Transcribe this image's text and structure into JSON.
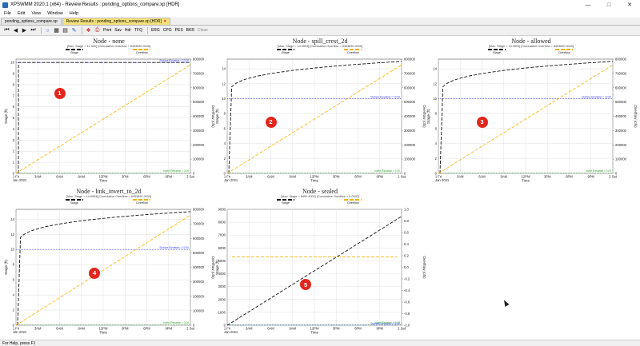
{
  "window": {
    "title": "XPSWMM 2020.1 (x64) - Review Results : ponding_options_compare.xp [HDR]",
    "icon": "app-icon"
  },
  "menu": {
    "items": [
      "File",
      "Edit",
      "View",
      "Window",
      "Help"
    ]
  },
  "tabs": [
    {
      "label": "ponding_options_compare.xp",
      "active": false
    },
    {
      "label": "Review Results : ponding_options_compare.xp [HDR]",
      "active": true
    }
  ],
  "toolbar": {
    "print": "Print",
    "save": "Sav",
    "help": "Hdr",
    "tfq": "TFQ",
    "erg": "ERG",
    "cpg": "CPG",
    "pes": "PES",
    "bkr": "BKR",
    "close": "Close"
  },
  "legend": {
    "stage": "Stage",
    "overflow": "Overflow"
  },
  "x_ticks": [
    "1 Fri",
    "3AM",
    "6AM",
    "9AM",
    "12PM",
    "3PM",
    "6PM",
    "9PM",
    "2 Sat"
  ],
  "x_date": "Jan 2021",
  "x_title": "Time",
  "y_left_title": "Stage (ft)",
  "y_right_title": "Overflow (cfs)",
  "surface_label": "Surface Elevation = 10.00",
  "invert_label": "Invert Elevation = 0.00",
  "marker_color": "#e2261d",
  "charts": [
    {
      "title": "Node - none",
      "stats": "[Max. Stage = 10.000] [Cumulative Overflow = 8453830.0000]",
      "marker": "1",
      "chart_data": {
        "type": "line",
        "title": "Node - none",
        "xlabel": "Time",
        "ylabel": "Stage (ft)",
        "y2label": "Overflow (cfs)",
        "x": [
          "1 Fri",
          "3AM",
          "6AM",
          "9AM",
          "12PM",
          "3PM",
          "6PM",
          "9PM",
          "2 Sat"
        ],
        "left_ticks": [
          "0",
          "1",
          "2",
          "3",
          "4",
          "5",
          "6",
          "7",
          "8",
          "9",
          "10"
        ],
        "right_ticks": [
          "0",
          "100000",
          "200000",
          "300000",
          "400000",
          "500000",
          "600000",
          "700000",
          "800000"
        ],
        "ylim": [
          0,
          10.3
        ],
        "y2lim": [
          0,
          800000
        ],
        "surface_elevation": 10,
        "series": [
          {
            "name": "Stage",
            "color": "#111111",
            "values": [
              0,
              10,
              10,
              10,
              10,
              10,
              10,
              10,
              10
            ],
            "rise": "step"
          },
          {
            "name": "Overflow",
            "color": "#f4b400",
            "values": [
              0,
              95000,
              190000,
              285000,
              380000,
              475000,
              570000,
              665000,
              760000
            ]
          }
        ]
      }
    },
    {
      "title": "Node - spill_crest_2d",
      "stats": "[Max. Stage = 14.9993] [Cumulative Overflow = 8453830.0000]",
      "marker": "2",
      "chart_data": {
        "type": "line",
        "title": "Node - spill_crest_2d",
        "xlabel": "Time",
        "ylabel": "Stage (ft)",
        "y2label": "Overflow (cfs)",
        "x": [
          "1 Fri",
          "3AM",
          "6AM",
          "9AM",
          "12PM",
          "3PM",
          "6PM",
          "9PM",
          "2 Sat"
        ],
        "left_ticks": [
          "0",
          "2",
          "4",
          "6",
          "8",
          "10",
          "12",
          "14"
        ],
        "right_ticks": [
          "0",
          "100000",
          "200000",
          "300000",
          "400000",
          "500000",
          "600000",
          "700000",
          "800000"
        ],
        "ylim": [
          0,
          15.3
        ],
        "y2lim": [
          0,
          800000
        ],
        "surface_elevation": 10,
        "series": [
          {
            "name": "Stage",
            "color": "#111111",
            "values": [
              0,
              13.2,
              13.8,
              14.1,
              14.35,
              14.55,
              14.7,
              14.85,
              15.0
            ],
            "rise": "curve"
          },
          {
            "name": "Overflow",
            "color": "#f4b400",
            "values": [
              0,
              95000,
              190000,
              285000,
              380000,
              475000,
              570000,
              665000,
              760000
            ]
          }
        ]
      }
    },
    {
      "title": "Node - allowed",
      "stats": "[Max. Stage = 14.9993] [Cumulative Overflow = 8453830.0000]",
      "marker": "3",
      "chart_data": {
        "type": "line",
        "title": "Node - allowed",
        "xlabel": "Time",
        "ylabel": "Stage (ft)",
        "y2label": "Overflow (cfs)",
        "x": [
          "1 Fri",
          "3AM",
          "6AM",
          "9AM",
          "12PM",
          "3PM",
          "6PM",
          "9PM",
          "2 Sat"
        ],
        "left_ticks": [
          "0",
          "2",
          "4",
          "6",
          "8",
          "10",
          "12",
          "14"
        ],
        "right_ticks": [
          "0",
          "100000",
          "200000",
          "300000",
          "400000",
          "500000",
          "600000",
          "700000",
          "800000"
        ],
        "ylim": [
          0,
          15.3
        ],
        "y2lim": [
          0,
          800000
        ],
        "surface_elevation": 10,
        "series": [
          {
            "name": "Stage",
            "color": "#111111",
            "values": [
              0,
              13.2,
              13.8,
              14.1,
              14.35,
              14.55,
              14.7,
              14.85,
              15.0
            ],
            "rise": "curve"
          },
          {
            "name": "Overflow",
            "color": "#f4b400",
            "values": [
              0,
              95000,
              190000,
              285000,
              380000,
              475000,
              570000,
              665000,
              760000
            ]
          }
        ]
      }
    },
    {
      "title": "Node - link_invert_to_2d",
      "stats": "[Max. Stage = 14.9993] [Cumulative Overflow = 8453830.0000]",
      "marker": "4",
      "chart_data": {
        "type": "line",
        "title": "Node - link_invert_to_2d",
        "xlabel": "Time",
        "ylabel": "Stage (ft)",
        "y2label": "Overflow (cfs)",
        "x": [
          "1 Fri",
          "3AM",
          "6AM",
          "9AM",
          "12PM",
          "3PM",
          "6PM",
          "9PM",
          "2 Sat"
        ],
        "left_ticks": [
          "0",
          "2",
          "4",
          "6",
          "8",
          "10",
          "12",
          "14"
        ],
        "right_ticks": [
          "0",
          "100000",
          "200000",
          "300000",
          "400000",
          "500000",
          "600000",
          "700000",
          "800000"
        ],
        "ylim": [
          0,
          15.3
        ],
        "y2lim": [
          0,
          800000
        ],
        "surface_elevation": 10,
        "series": [
          {
            "name": "Stage",
            "color": "#111111",
            "values": [
              0,
              13.2,
              13.8,
              14.1,
              14.35,
              14.55,
              14.7,
              14.85,
              15.0
            ],
            "rise": "curve"
          },
          {
            "name": "Overflow",
            "color": "#f4b400",
            "values": [
              0,
              95000,
              190000,
              285000,
              380000,
              475000,
              570000,
              665000,
              760000
            ]
          }
        ]
      }
    },
    {
      "title": "Node - sealed",
      "stats": "[Max. Stage = 8453.4000] [Cumulative Overflow = 0.0000]",
      "marker": "5",
      "chart_data": {
        "type": "line",
        "title": "Node - sealed",
        "xlabel": "Time",
        "ylabel": "Stage (ft)",
        "y2label": "Overflow (cfs)",
        "x": [
          "1 Fri",
          "3AM",
          "6AM",
          "9AM",
          "12PM",
          "3PM",
          "6PM",
          "9PM",
          "2 Sat"
        ],
        "left_ticks": [
          "0",
          "1000",
          "2000",
          "3000",
          "4000",
          "5000",
          "6000",
          "7000",
          "8000",
          "9000"
        ],
        "right_ticks": [
          "-1.0",
          "-0.8",
          "-0.6",
          "-0.4",
          "-0.2",
          "0.0",
          "0.2",
          "0.4",
          "0.6",
          "0.8",
          "1.0"
        ],
        "ylim": [
          0,
          9000
        ],
        "y2lim": [
          -1,
          1
        ],
        "surface_elevation": 10,
        "series": [
          {
            "name": "Stage",
            "color": "#111111",
            "values": [
              0,
              1057,
              2113,
              3170,
              4227,
              5284,
              6340,
              7397,
              8453
            ],
            "rise": "line"
          },
          {
            "name": "Overflow",
            "color": "#f4b400",
            "values": [
              0,
              0,
              0,
              0,
              0,
              0,
              0,
              0,
              0
            ]
          }
        ]
      }
    }
  ],
  "status": "For Help, press F1"
}
